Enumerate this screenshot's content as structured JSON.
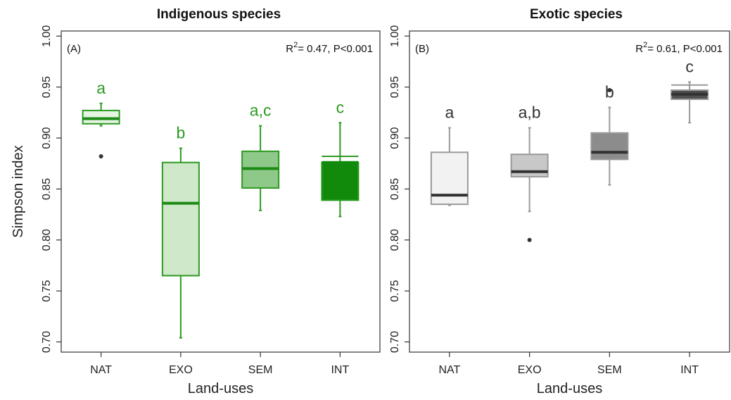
{
  "chart_data": [
    {
      "type": "box",
      "title": "Indigenous species",
      "panel_label": "(A)",
      "stat_label": {
        "r2_prefix": "R",
        "r2_exp": "2",
        "r2_rest": "= 0.47, P<0.001"
      },
      "xlabel": "Land-uses",
      "ylabel": "Simpson index",
      "ylim": [
        0.69,
        1.005
      ],
      "yticks": [
        "0.70",
        "0.75",
        "0.80",
        "0.85",
        "0.90",
        "0.95",
        "1.00"
      ],
      "categories": [
        "NAT",
        "EXO",
        "SEM",
        "INT"
      ],
      "boxes": [
        {
          "label": "NAT",
          "min": 0.912,
          "q1": 0.914,
          "median": 0.919,
          "q3": 0.927,
          "max": 0.934,
          "outliers": [
            0.882
          ],
          "letter": "a",
          "fill": "#e6f4e2",
          "stroke": "#2c9a22",
          "median_color": "#1e8a16",
          "letter_color": "#2c9a22"
        },
        {
          "label": "EXO",
          "min": 0.704,
          "q1": 0.765,
          "median": 0.836,
          "q3": 0.876,
          "max": 0.89,
          "outliers": [],
          "letter": "b",
          "fill": "#cfe8c9",
          "stroke": "#2c9a22",
          "median_color": "#1e8a16",
          "letter_color": "#2c9a22"
        },
        {
          "label": "SEM",
          "min": 0.829,
          "q1": 0.851,
          "median": 0.87,
          "q3": 0.887,
          "max": 0.912,
          "outliers": [],
          "letter": "a,c",
          "fill": "#8fc989",
          "stroke": "#2c9a22",
          "median_color": "#1e8a16",
          "letter_color": "#2c9a22"
        },
        {
          "label": "INT",
          "min": 0.823,
          "q1": 0.839,
          "median": 0.876,
          "q3": 0.876,
          "max": 0.915,
          "outliers": [],
          "extra_line": 0.882,
          "letter": "c",
          "fill": "#118a0c",
          "stroke": "#2c9a22",
          "median_color": "#118a0c",
          "letter_color": "#2c9a22"
        }
      ]
    },
    {
      "type": "box",
      "title": "Exotic species",
      "panel_label": "(B)",
      "stat_label": {
        "r2_prefix": "R",
        "r2_exp": "2",
        "r2_rest": "= 0.61, P<0.001"
      },
      "xlabel": "Land-uses",
      "ylabel": "",
      "ylim": [
        0.69,
        1.005
      ],
      "yticks": [
        "0.70",
        "0.75",
        "0.80",
        "0.85",
        "0.90",
        "0.95",
        "1.00"
      ],
      "categories": [
        "NAT",
        "EXO",
        "SEM",
        "INT"
      ],
      "boxes": [
        {
          "label": "NAT",
          "min": 0.834,
          "q1": 0.835,
          "median": 0.844,
          "q3": 0.886,
          "max": 0.91,
          "outliers": [],
          "letter": "a",
          "fill": "#f2f2f2",
          "stroke": "#9a9a9a",
          "median_color": "#333333",
          "letter_color": "#333333"
        },
        {
          "label": "EXO",
          "min": 0.828,
          "q1": 0.862,
          "median": 0.867,
          "q3": 0.884,
          "max": 0.91,
          "outliers": [
            0.8
          ],
          "letter": "a,b",
          "fill": "#c8c8c8",
          "stroke": "#9a9a9a",
          "median_color": "#333333",
          "letter_color": "#333333"
        },
        {
          "label": "SEM",
          "min": 0.854,
          "q1": 0.879,
          "median": 0.886,
          "q3": 0.905,
          "max": 0.93,
          "outliers": [
            0.947
          ],
          "letter": "b",
          "fill": "#8c8c8c",
          "stroke": "#9a9a9a",
          "median_color": "#333333",
          "letter_color": "#333333"
        },
        {
          "label": "INT",
          "min": 0.915,
          "q1": 0.938,
          "median": 0.943,
          "q3": 0.947,
          "max": 0.955,
          "outliers": [],
          "extra_line": 0.952,
          "letter": "c",
          "fill": "#505050",
          "stroke": "#9a9a9a",
          "median_color": "#333333",
          "letter_color": "#333333"
        }
      ]
    }
  ]
}
